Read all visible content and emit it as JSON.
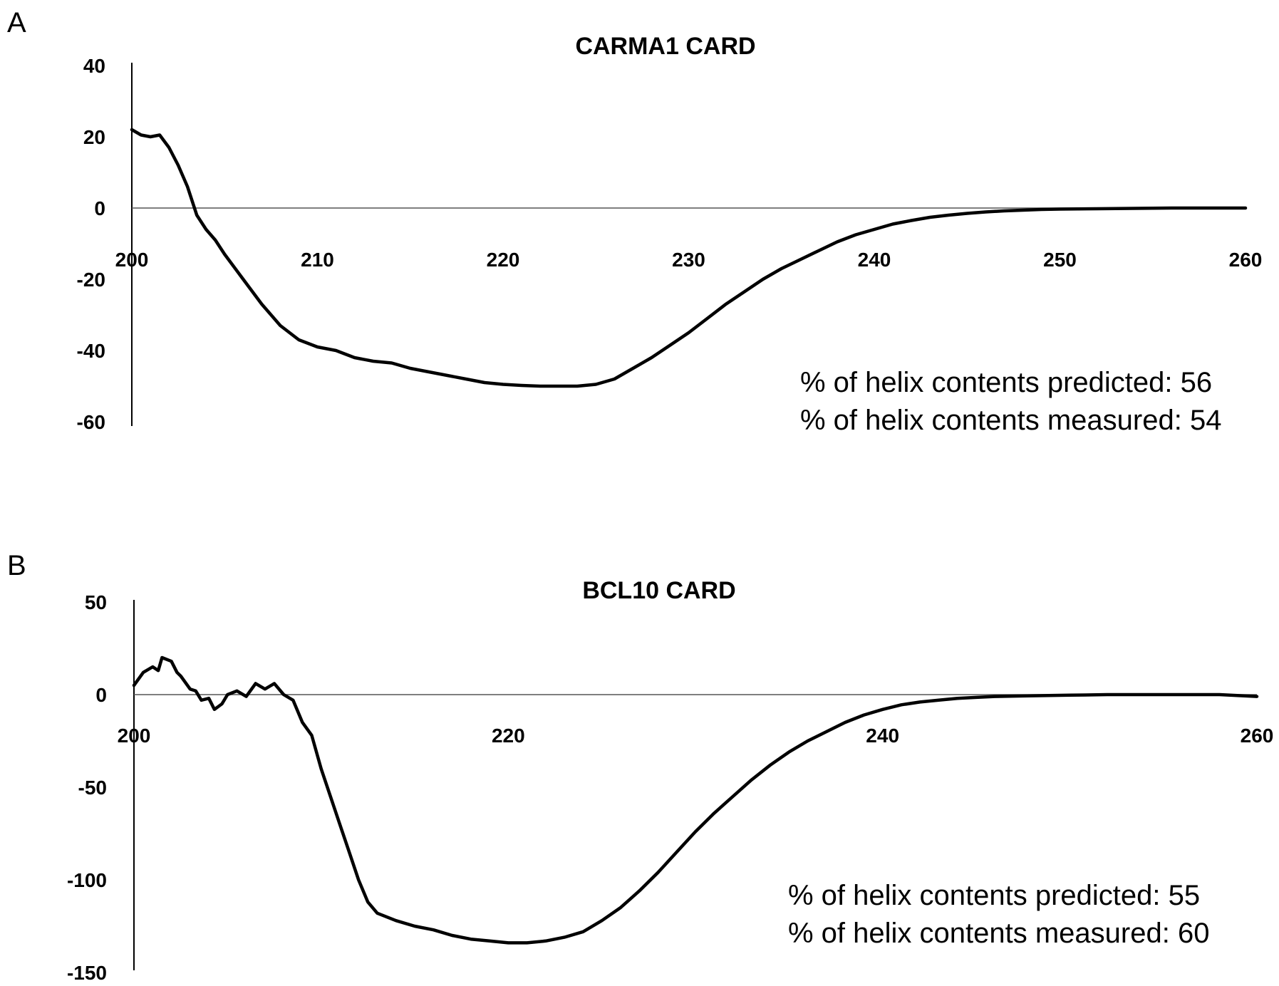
{
  "panels": [
    {
      "letter": "A"
    },
    {
      "letter": "B"
    }
  ],
  "chart_data": [
    {
      "type": "line",
      "title": "CARMA1 CARD",
      "xlabel": "",
      "ylabel": "",
      "xlim": [
        200,
        260
      ],
      "ylim": [
        -60,
        40
      ],
      "x_ticks": [
        200,
        210,
        220,
        230,
        240,
        250,
        260
      ],
      "y_ticks": [
        40,
        20,
        0,
        -20,
        -40,
        -60
      ],
      "grid": false,
      "series": [
        {
          "x": [
            200,
            200.5,
            201,
            201.5,
            202,
            202.5,
            203,
            203.5,
            204,
            204.5,
            205,
            206,
            207,
            208,
            209,
            210,
            211,
            212,
            213,
            214,
            215,
            216,
            217,
            218,
            219,
            220,
            221,
            222,
            223,
            224,
            225,
            226,
            227,
            228,
            229,
            230,
            231,
            232,
            233,
            234,
            235,
            236,
            237,
            238,
            239,
            240,
            241,
            242,
            243,
            244,
            245,
            246,
            247,
            248,
            249,
            250,
            252,
            254,
            256,
            258,
            260
          ],
          "y": [
            22,
            20.5,
            20,
            20.5,
            17,
            12,
            6,
            -2,
            -6,
            -9,
            -13,
            -20,
            -27,
            -33,
            -37,
            -39,
            -40,
            -42,
            -43,
            -43.5,
            -45,
            -46,
            -47,
            -48,
            -49,
            -49.5,
            -49.8,
            -50,
            -50,
            -50,
            -49.5,
            -48,
            -45,
            -42,
            -38.5,
            -35,
            -31,
            -27,
            -23.5,
            -20,
            -17,
            -14.5,
            -12,
            -9.5,
            -7.5,
            -6,
            -4.5,
            -3.5,
            -2.6,
            -2,
            -1.5,
            -1.1,
            -0.8,
            -0.6,
            -0.4,
            -0.3,
            -0.2,
            -0.1,
            0,
            0,
            0
          ]
        }
      ],
      "annotations": [
        "% of helix contents predicted: 56",
        "% of helix contents measured: 54"
      ]
    },
    {
      "type": "line",
      "title": "BCL10 CARD",
      "xlabel": "",
      "ylabel": "",
      "xlim": [
        200,
        260
      ],
      "ylim": [
        -150,
        50
      ],
      "x_ticks": [
        200,
        220,
        240,
        260
      ],
      "y_ticks": [
        50,
        0,
        -50,
        -100,
        -150
      ],
      "grid": false,
      "series": [
        {
          "x": [
            200,
            200.5,
            201,
            201.3,
            201.5,
            202,
            202.3,
            202.5,
            203,
            203.3,
            203.6,
            204,
            204.3,
            204.7,
            205,
            205.5,
            206,
            206.5,
            207,
            207.5,
            208,
            208.5,
            209,
            209.5,
            210,
            210.5,
            211,
            211.5,
            212,
            212.5,
            213,
            214,
            215,
            216,
            217,
            218,
            219,
            220,
            221,
            222,
            223,
            224,
            225,
            226,
            227,
            228,
            229,
            230,
            231,
            232,
            233,
            234,
            235,
            236,
            237,
            238,
            239,
            240,
            241,
            242,
            243,
            244,
            245,
            246,
            247,
            248,
            250,
            252,
            255,
            258,
            260
          ],
          "y": [
            5,
            12,
            15,
            13,
            20,
            18,
            12,
            10,
            3,
            2,
            -3,
            -2,
            -8,
            -5,
            0,
            2,
            -1,
            6,
            3,
            6,
            0,
            -3,
            -15,
            -22,
            -40,
            -55,
            -70,
            -85,
            -100,
            -112,
            -118,
            -122,
            -125,
            -127,
            -130,
            -132,
            -133,
            -134,
            -134,
            -133,
            -131,
            -128,
            -122,
            -115,
            -106,
            -96,
            -85,
            -74,
            -64,
            -55,
            -46,
            -38,
            -31,
            -25,
            -20,
            -15,
            -11,
            -8,
            -5.5,
            -4,
            -3,
            -2,
            -1.5,
            -1,
            -0.8,
            -0.6,
            -0.3,
            0,
            0,
            0,
            -1
          ]
        }
      ],
      "annotations": [
        "% of helix contents predicted: 55",
        "% of helix contents measured: 60"
      ]
    }
  ]
}
